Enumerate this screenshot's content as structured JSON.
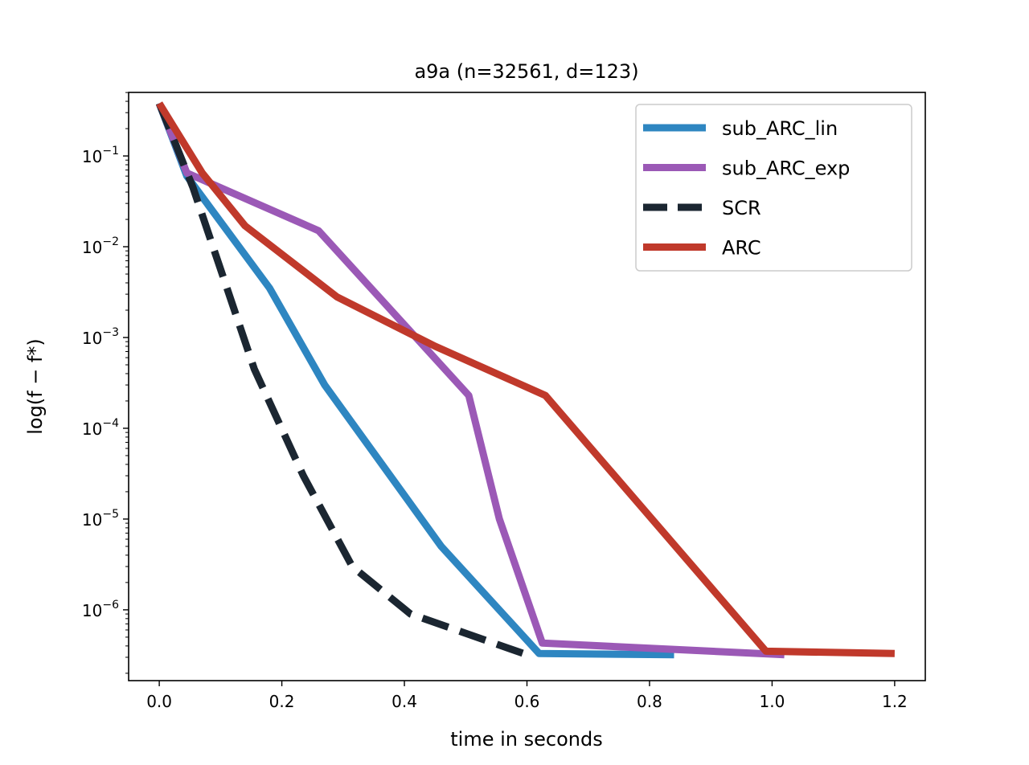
{
  "chart_data": {
    "type": "line",
    "title": "a9a (n=32561, d=123)",
    "xlabel": "time in seconds",
    "ylabel": "log(f − f*)",
    "xlim": [
      -0.05,
      1.25
    ],
    "ylim_log10": [
      -6.78,
      -0.3
    ],
    "yscale": "log",
    "grid": false,
    "legend_position": "top-right",
    "x_ticks": [
      0.0,
      0.2,
      0.4,
      0.6,
      0.8,
      1.0,
      1.2
    ],
    "x_tick_labels": [
      "0.0",
      "0.2",
      "0.4",
      "0.6",
      "0.8",
      "1.0",
      "1.2"
    ],
    "y_ticks_log10": [
      -1,
      -2,
      -3,
      -4,
      -5,
      -6
    ],
    "y_tick_labels": [
      {
        "base": "10",
        "exp": "−1"
      },
      {
        "base": "10",
        "exp": "−2"
      },
      {
        "base": "10",
        "exp": "−3"
      },
      {
        "base": "10",
        "exp": "−4"
      },
      {
        "base": "10",
        "exp": "−5"
      },
      {
        "base": "10",
        "exp": "−6"
      }
    ],
    "series": [
      {
        "name": "sub_ARC_lin",
        "color": "#2e86c1",
        "dash": "solid",
        "x": [
          0.0,
          0.045,
          0.18,
          0.27,
          0.46,
          0.62,
          0.84
        ],
        "y": [
          0.38,
          0.06,
          0.0035,
          0.0003,
          5e-06,
          3.3e-07,
          3.2e-07
        ]
      },
      {
        "name": "sub_ARC_exp",
        "color": "#9b59b6",
        "dash": "solid",
        "x": [
          0.0,
          0.045,
          0.26,
          0.505,
          0.555,
          0.625,
          1.02
        ],
        "y": [
          0.38,
          0.065,
          0.015,
          0.00023,
          1e-05,
          4.3e-07,
          3.2e-07
        ]
      },
      {
        "name": "SCR",
        "color": "#1b2631",
        "dash": "dashed",
        "x": [
          0.0,
          0.055,
          0.155,
          0.235,
          0.315,
          0.41,
          0.6
        ],
        "y": [
          0.38,
          0.045,
          0.00045,
          3e-05,
          3e-06,
          9e-07,
          3.2e-07
        ]
      },
      {
        "name": "ARC",
        "color": "#c0392b",
        "dash": "solid",
        "x": [
          0.0,
          0.07,
          0.14,
          0.29,
          0.45,
          0.63,
          0.99,
          1.2
        ],
        "y": [
          0.38,
          0.065,
          0.017,
          0.0028,
          0.0008,
          0.00023,
          3.5e-07,
          3.3e-07
        ]
      }
    ]
  }
}
